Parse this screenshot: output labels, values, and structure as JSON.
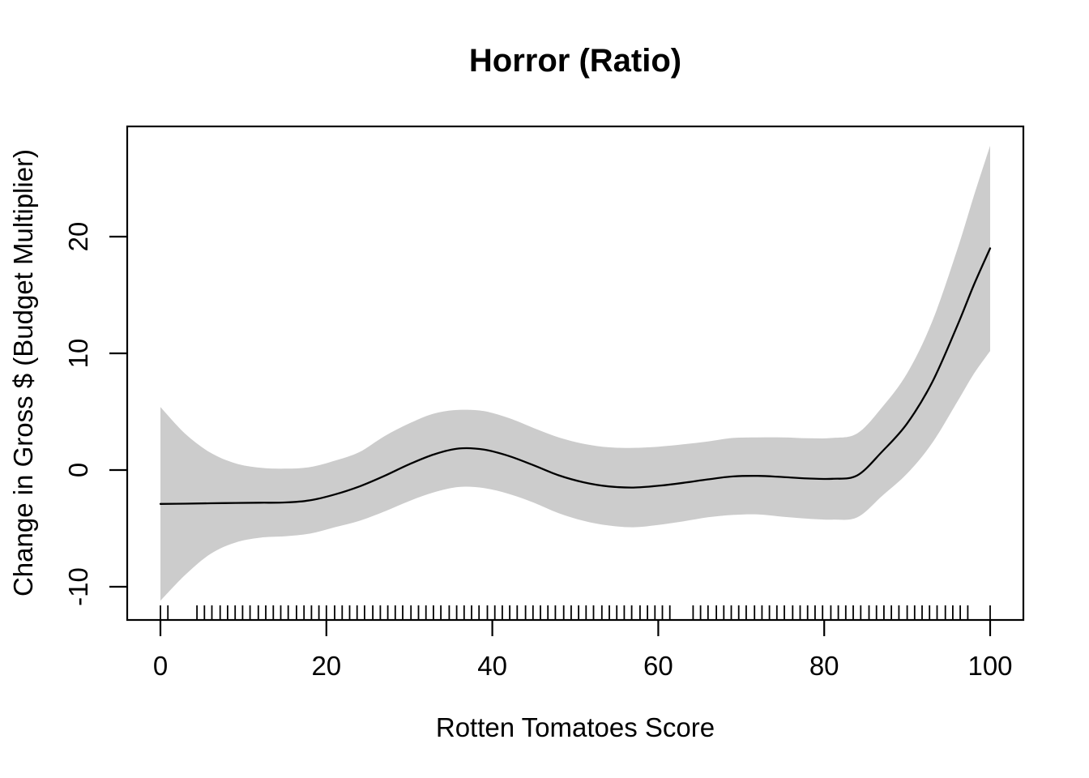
{
  "figure": {
    "background": "#ffffff"
  },
  "chart_data": {
    "type": "line",
    "title": "Horror (Ratio)",
    "xlabel": "Rotten Tomatoes Score",
    "ylabel": "Change in Gross $ (Budget Multiplier)",
    "x_ticks": [
      0,
      20,
      40,
      60,
      80,
      100
    ],
    "y_ticks": [
      -10,
      0,
      10,
      20
    ],
    "xlim": [
      -4,
      104
    ],
    "ylim": [
      -12.85,
      29.4
    ],
    "grid": false,
    "legend": "none",
    "colors": {
      "band": "#cccccc",
      "line": "#000000",
      "axis": "#000000",
      "text": "#000000"
    },
    "x": [
      0,
      3,
      6,
      9,
      12,
      15,
      18,
      21,
      24,
      27,
      30,
      33,
      36,
      39,
      42,
      45,
      48,
      51,
      54,
      57,
      60,
      63,
      66,
      69,
      72,
      75,
      78,
      81,
      84,
      87,
      90,
      93,
      96,
      98,
      100
    ],
    "series": [
      {
        "name": "smooth_estimate",
        "values": [
          -2.9,
          -2.88,
          -2.85,
          -2.82,
          -2.8,
          -2.78,
          -2.6,
          -2.1,
          -1.4,
          -0.5,
          0.5,
          1.35,
          1.85,
          1.75,
          1.2,
          0.4,
          -0.45,
          -1.05,
          -1.4,
          -1.5,
          -1.35,
          -1.1,
          -0.8,
          -0.55,
          -0.5,
          -0.6,
          -0.72,
          -0.75,
          -0.45,
          1.6,
          4.0,
          7.5,
          12.3,
          15.8,
          19.0
        ]
      },
      {
        "name": "ci_upper",
        "values": [
          5.4,
          3.1,
          1.5,
          0.58,
          0.2,
          0.12,
          0.25,
          0.8,
          1.55,
          2.9,
          4.0,
          4.85,
          5.15,
          5.05,
          4.45,
          3.6,
          2.8,
          2.25,
          1.95,
          1.9,
          2.0,
          2.2,
          2.45,
          2.75,
          2.8,
          2.8,
          2.73,
          2.75,
          3.15,
          5.4,
          8.3,
          12.7,
          18.8,
          23.4,
          27.8
        ]
      },
      {
        "name": "ci_lower",
        "values": [
          -11.2,
          -8.98,
          -7.2,
          -6.22,
          -5.8,
          -5.68,
          -5.45,
          -4.9,
          -4.35,
          -3.55,
          -2.65,
          -1.9,
          -1.45,
          -1.55,
          -2.05,
          -2.8,
          -3.7,
          -4.35,
          -4.75,
          -4.9,
          -4.7,
          -4.4,
          -4.05,
          -3.85,
          -3.8,
          -4.0,
          -4.17,
          -4.25,
          -4.05,
          -2.2,
          -0.3,
          2.3,
          5.8,
          8.2,
          10.2
        ]
      }
    ],
    "rug_x": [
      0,
      0.9,
      4.4,
      5.3,
      6.2,
      7.2,
      8.1,
      9.0,
      9.9,
      10.8,
      11.8,
      12.7,
      13.6,
      14.5,
      15.4,
      16.4,
      17.3,
      18.2,
      19.1,
      20.0,
      21.0,
      21.9,
      22.8,
      23.7,
      24.6,
      25.6,
      26.5,
      27.4,
      28.3,
      29.2,
      30.2,
      31.1,
      32.0,
      32.9,
      33.8,
      34.8,
      35.7,
      36.6,
      37.5,
      38.4,
      39.4,
      40.3,
      41.2,
      42.1,
      43.0,
      44.0,
      44.9,
      45.8,
      46.7,
      47.6,
      48.6,
      49.5,
      50.4,
      51.3,
      52.2,
      53.2,
      54.1,
      55.0,
      55.9,
      56.8,
      57.8,
      58.7,
      59.6,
      60.5,
      61.4,
      64.2,
      65.1,
      66.0,
      67.0,
      67.9,
      68.8,
      69.7,
      70.6,
      71.6,
      72.5,
      73.4,
      74.3,
      75.2,
      76.2,
      77.1,
      78.0,
      78.9,
      79.8,
      80.8,
      81.7,
      82.6,
      83.5,
      84.4,
      85.4,
      86.3,
      87.2,
      88.1,
      89.0,
      90.0,
      90.9,
      91.8,
      92.7,
      93.6,
      94.6,
      95.5,
      96.4,
      97.3,
      100
    ]
  }
}
